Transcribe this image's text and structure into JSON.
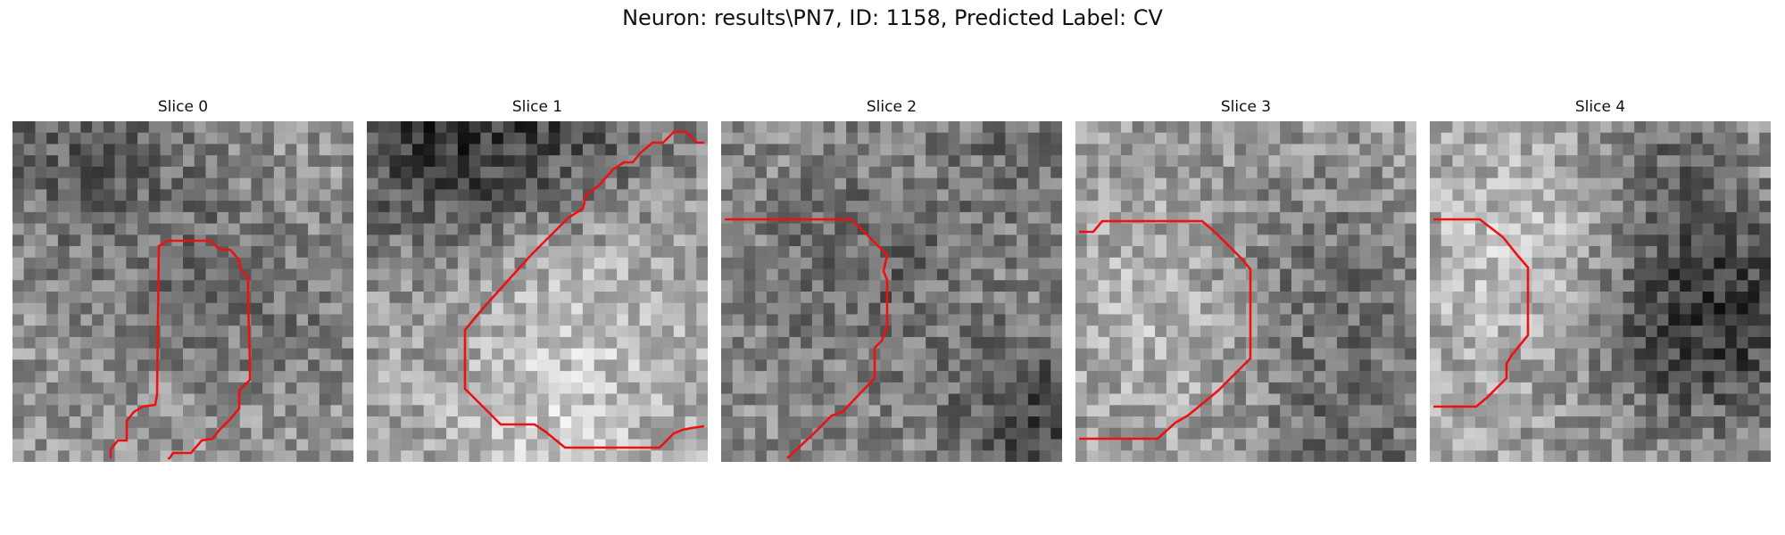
{
  "figure": {
    "title": "Neuron: results\\PN7, ID: 1158, Predicted Label: CV"
  },
  "slices": [
    {
      "title": "Slice 0"
    },
    {
      "title": "Slice 1"
    },
    {
      "title": "Slice 2"
    },
    {
      "title": "Slice 3"
    },
    {
      "title": "Slice 4"
    }
  ],
  "colors": {
    "contour": "#ee1111",
    "background": "#ffffff"
  }
}
